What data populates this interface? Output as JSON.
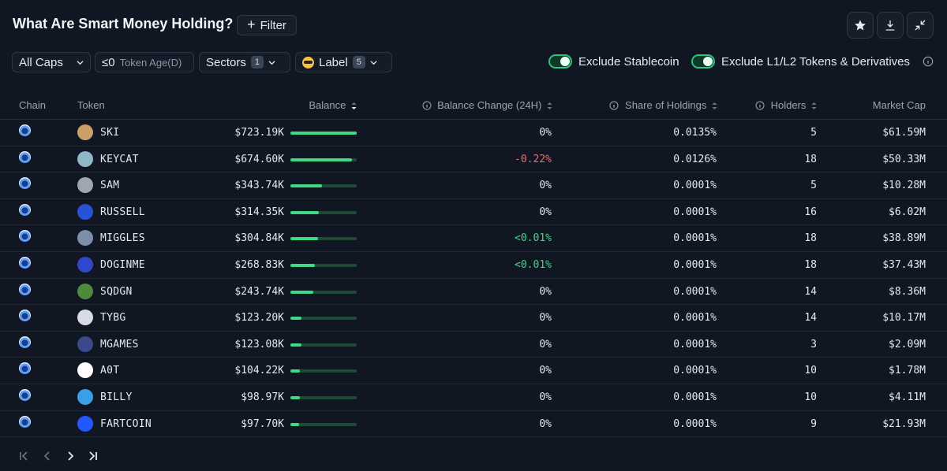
{
  "header": {
    "title": "What Are Smart Money Holding?",
    "filter_label": "Filter"
  },
  "filters": {
    "caps": "All Caps",
    "token_age_value": "≤0",
    "token_age_label": "Token Age(D)",
    "sectors": "Sectors",
    "sectors_count": "1",
    "label": "Label",
    "label_count": "5",
    "exclude_stablecoin": "Exclude Stablecoin",
    "exclude_l1l2": "Exclude L1/L2 Tokens & Derivatives"
  },
  "columns": {
    "chain": "Chain",
    "token": "Token",
    "balance": "Balance",
    "balance_change": "Balance Change (24H)",
    "share": "Share of Holdings",
    "holders": "Holders",
    "market_cap": "Market Cap"
  },
  "rows": [
    {
      "token": "SKI",
      "balance": "$723.19K",
      "bar": 1.0,
      "change": "0%",
      "share": "0.0135%",
      "holders": "5",
      "mcap": "$61.59M"
    },
    {
      "token": "KEYCAT",
      "balance": "$674.60K",
      "bar": 0.93,
      "change": "-0.22%",
      "share": "0.0126%",
      "holders": "18",
      "mcap": "$50.33M"
    },
    {
      "token": "SAM",
      "balance": "$343.74K",
      "bar": 0.48,
      "change": "0%",
      "share": "0.0001%",
      "holders": "5",
      "mcap": "$10.28M"
    },
    {
      "token": "RUSSELL",
      "balance": "$314.35K",
      "bar": 0.43,
      "change": "0%",
      "share": "0.0001%",
      "holders": "16",
      "mcap": "$6.02M"
    },
    {
      "token": "MIGGLES",
      "balance": "$304.84K",
      "bar": 0.42,
      "change": "<0.01%",
      "share": "0.0001%",
      "holders": "18",
      "mcap": "$38.89M"
    },
    {
      "token": "DOGINME",
      "balance": "$268.83K",
      "bar": 0.37,
      "change": "<0.01%",
      "share": "0.0001%",
      "holders": "18",
      "mcap": "$37.43M"
    },
    {
      "token": "SQDGN",
      "balance": "$243.74K",
      "bar": 0.34,
      "change": "0%",
      "share": "0.0001%",
      "holders": "14",
      "mcap": "$8.36M"
    },
    {
      "token": "TYBG",
      "balance": "$123.20K",
      "bar": 0.17,
      "change": "0%",
      "share": "0.0001%",
      "holders": "14",
      "mcap": "$10.17M"
    },
    {
      "token": "MGAMES",
      "balance": "$123.08K",
      "bar": 0.17,
      "change": "0%",
      "share": "0.0001%",
      "holders": "3",
      "mcap": "$2.09M"
    },
    {
      "token": "A0T",
      "balance": "$104.22K",
      "bar": 0.14,
      "change": "0%",
      "share": "0.0001%",
      "holders": "10",
      "mcap": "$1.78M"
    },
    {
      "token": "BILLY",
      "balance": "$98.97K",
      "bar": 0.14,
      "change": "0%",
      "share": "0.0001%",
      "holders": "10",
      "mcap": "$4.11M"
    },
    {
      "token": "FARTCOIN",
      "balance": "$97.70K",
      "bar": 0.13,
      "change": "0%",
      "share": "0.0001%",
      "holders": "9",
      "mcap": "$21.93M"
    }
  ],
  "token_colors": [
    "#c9a06a",
    "#8fb7c9",
    "#a0a6b0",
    "#2a52d6",
    "#7d8fa8",
    "#3048c9",
    "#4e8a3c",
    "#d8dbe6",
    "#3b4a8c",
    "#ffffff",
    "#3aa0e6",
    "#2357ff"
  ],
  "colors": {
    "accent_green": "#3ddc84",
    "negative_red": "#f26b6b",
    "background": "#101722"
  }
}
